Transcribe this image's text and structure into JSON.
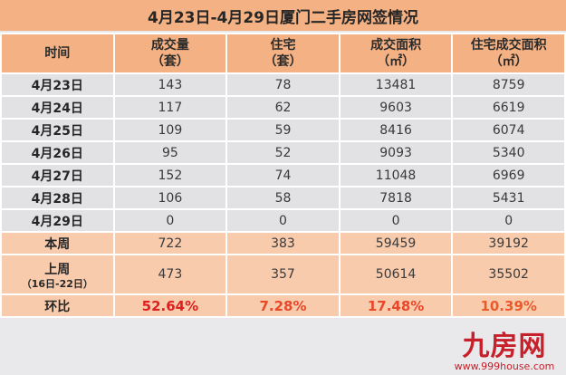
{
  "title": "4月23日-4月29日厦门二手房网签情况",
  "headers": [
    {
      "line1": "时间",
      "line2": ""
    },
    {
      "line1": "成交量",
      "line2": "（套）"
    },
    {
      "line1": "住宅",
      "line2": "（套）"
    },
    {
      "line1": "成交面积",
      "line2": "（㎡）"
    },
    {
      "line1": "住宅成交面积",
      "line2": "（㎡）"
    }
  ],
  "days": [
    {
      "date": "4月23日",
      "volume": "143",
      "residential": "78",
      "area": "13481",
      "res_area": "8759"
    },
    {
      "date": "4月24日",
      "volume": "117",
      "residential": "62",
      "area": "9603",
      "res_area": "6619"
    },
    {
      "date": "4月25日",
      "volume": "109",
      "residential": "59",
      "area": "8416",
      "res_area": "6074"
    },
    {
      "date": "4月26日",
      "volume": "95",
      "residential": "52",
      "area": "9093",
      "res_area": "5340"
    },
    {
      "date": "4月27日",
      "volume": "152",
      "residential": "74",
      "area": "11048",
      "res_area": "6969"
    },
    {
      "date": "4月28日",
      "volume": "106",
      "residential": "58",
      "area": "7818",
      "res_area": "5431"
    },
    {
      "date": "4月29日",
      "volume": "0",
      "residential": "0",
      "area": "0",
      "res_area": "0"
    }
  ],
  "this_week": {
    "label": "本周",
    "volume": "722",
    "residential": "383",
    "area": "59459",
    "res_area": "39192"
  },
  "last_week": {
    "label": "上周",
    "sublabel": "（16日-22日）",
    "volume": "473",
    "residential": "357",
    "area": "50614",
    "res_area": "35502"
  },
  "change": {
    "label": "环比",
    "volume": "52.64%",
    "residential": "7.28%",
    "area": "17.48%",
    "res_area": "10.39%"
  },
  "colors": {
    "header_bg": "#f4b183",
    "day_row_bg": "#e2e1e4",
    "summary_bg": "#f8cbad",
    "pct_colors": [
      "#e0201e",
      "#e8482a",
      "#e8482a",
      "#ea5b2c"
    ]
  },
  "watermark": {
    "brand": "九房网",
    "url": "www.999house.com"
  }
}
